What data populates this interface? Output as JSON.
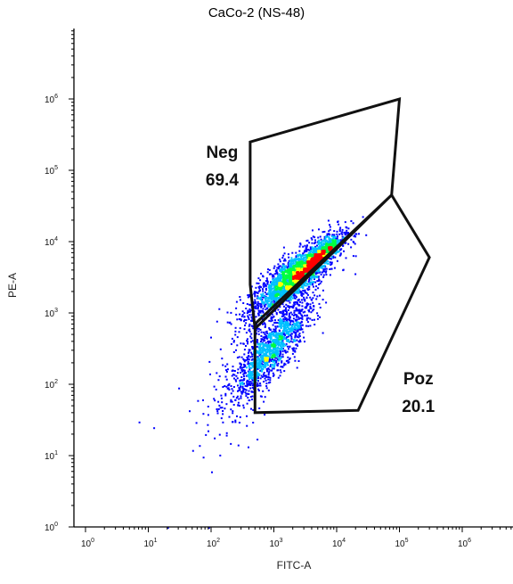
{
  "chart_data": {
    "type": "scatter",
    "title": "CaCo-2 (NS-48)",
    "xlabel": "FITC-A",
    "ylabel": "PE-A",
    "x_scale": "log",
    "y_scale": "log",
    "xlim": [
      1,
      1000000
    ],
    "ylim": [
      1,
      1000000
    ],
    "x_ticks": [
      {
        "base": "10",
        "exp": "0",
        "value": 1
      },
      {
        "base": "10",
        "exp": "1",
        "value": 10
      },
      {
        "base": "10",
        "exp": "2",
        "value": 100
      },
      {
        "base": "10",
        "exp": "3",
        "value": 1000
      },
      {
        "base": "10",
        "exp": "4",
        "value": 10000
      },
      {
        "base": "10",
        "exp": "5",
        "value": 100000
      },
      {
        "base": "10",
        "exp": "6",
        "value": 1000000
      }
    ],
    "y_ticks": [
      {
        "base": "10",
        "exp": "0",
        "value": 1
      },
      {
        "base": "10",
        "exp": "1",
        "value": 10
      },
      {
        "base": "10",
        "exp": "2",
        "value": 100
      },
      {
        "base": "10",
        "exp": "3",
        "value": 1000
      },
      {
        "base": "10",
        "exp": "4",
        "value": 10000
      },
      {
        "base": "10",
        "exp": "5",
        "value": 100000
      },
      {
        "base": "10",
        "exp": "6",
        "value": 1000000
      }
    ],
    "grid": false,
    "density_colors": [
      "#0000ff",
      "#00c0ff",
      "#00ff40",
      "#ffff00",
      "#ff0000"
    ],
    "gates": [
      {
        "name": "Neg",
        "percent": "69.4",
        "label_at": [
          150,
          150000
        ],
        "vertices": [
          [
            420,
            250000
          ],
          [
            100000,
            1000000
          ],
          [
            75000,
            45000
          ],
          [
            500,
            600
          ],
          [
            420,
            2500
          ]
        ]
      },
      {
        "name": "Poz",
        "percent": "20.1",
        "label_at": [
          200000,
          100
        ],
        "vertices": [
          [
            500,
            700
          ],
          [
            75000,
            45000
          ],
          [
            300000,
            6000
          ],
          [
            22000,
            43
          ],
          [
            500,
            40
          ]
        ]
      }
    ],
    "populations": [
      {
        "cx": 2000,
        "cy": 3200,
        "sx": 0.35,
        "sy": 0.28,
        "n": 2200,
        "corr": 0.82
      },
      {
        "cx": 4500,
        "cy": 5500,
        "sx": 0.2,
        "sy": 0.18,
        "n": 900,
        "corr": 0.9
      },
      {
        "cx": 1000,
        "cy": 350,
        "sx": 0.3,
        "sy": 0.32,
        "n": 1100,
        "corr": 0.85
      },
      {
        "cx": 500,
        "cy": 200,
        "sx": 0.35,
        "sy": 0.45,
        "n": 400,
        "corr": 0.7
      }
    ],
    "sparse_events": [
      [
        7,
        30
      ],
      [
        12,
        25
      ],
      [
        20,
        1
      ],
      [
        50,
        12
      ],
      [
        60,
        60
      ],
      [
        80,
        20
      ],
      [
        90,
        1
      ],
      [
        100,
        6
      ],
      [
        30,
        90
      ],
      [
        150,
        30
      ],
      [
        200,
        15
      ]
    ]
  }
}
